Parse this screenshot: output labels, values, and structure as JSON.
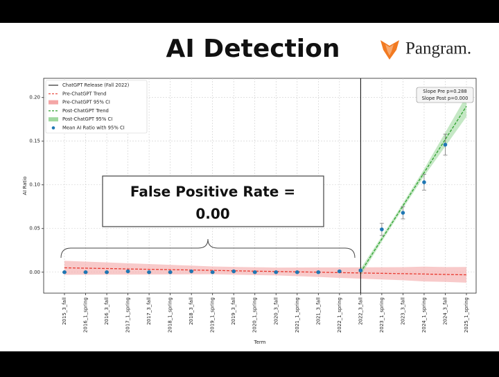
{
  "slide": {
    "title": "AI Detection",
    "logo": "Pangram."
  },
  "chart_data": {
    "type": "errorbar",
    "x_label": "Term",
    "y_label": "AI Ratio",
    "categories": [
      "2015_3_fall",
      "2016_1_spring",
      "2016_3_fall",
      "2017_1_spring",
      "2017_3_fall",
      "2018_1_spring",
      "2018_3_fall",
      "2019_1_spring",
      "2019_3_fall",
      "2020_1_spring",
      "2020_3_fall",
      "2021_1_spring",
      "2021_3_fall",
      "2022_1_spring",
      "2022_3_fall",
      "2023_1_spring",
      "2023_3_fall",
      "2024_1_spring",
      "2024_3_fall",
      "2025_1_spring"
    ],
    "ylim": [
      -0.024,
      0.222
    ],
    "yticks": [
      {
        "value": 0,
        "label": "0.00"
      },
      0.05,
      {
        "value": 0.1,
        "label": "0.10"
      },
      0.15,
      {
        "value": 0.2,
        "label": "0.20"
      }
    ],
    "grid": true,
    "release": {
      "name": "ChatGPT Release (Fall 2022)",
      "category": "2022_3_fall",
      "color": "#000000"
    },
    "trends": [
      {
        "name": "Pre-ChatGPT Trend",
        "color": "#e8392f",
        "ci_name": "Pre-ChatGPT 95% CI",
        "ci_color": "#f4a6a6",
        "values": [
          0.005,
          0.0046,
          0.0042,
          0.0037,
          0.0033,
          0.0029,
          0.0025,
          0.0021,
          0.0016,
          0.0012,
          0.0008,
          0.0004,
          0,
          -0.0005,
          -0.0009,
          -0.0013,
          -0.0017,
          -0.0021,
          -0.0026,
          -0.003
        ],
        "ci_upper": [
          0.013,
          0.0121,
          0.0112,
          0.0102,
          0.0093,
          0.0084,
          0.0075,
          0.0066,
          0.0061,
          0.0057,
          0.0053,
          0.0054,
          0.0055,
          0.0055,
          0.0056,
          0.0057,
          0.0058,
          0.0064,
          0.0059,
          0.006
        ],
        "ci_lower": [
          -0.003,
          -0.0029,
          -0.0028,
          -0.0028,
          -0.0027,
          -0.0026,
          -0.0025,
          -0.0024,
          -0.0029,
          -0.0033,
          -0.0037,
          -0.0046,
          -0.0055,
          -0.0065,
          -0.0074,
          -0.0083,
          -0.0092,
          -0.0106,
          -0.0111,
          -0.012
        ]
      },
      {
        "name": "Post-ChatGPT Trend",
        "color": "#2ca02c",
        "ci_name": "Post-ChatGPT 95% CI",
        "ci_color": "#9fd89f",
        "values": [
          null,
          null,
          null,
          null,
          null,
          null,
          null,
          null,
          null,
          null,
          null,
          null,
          null,
          null,
          0,
          0.038,
          0.076,
          0.114,
          0.152,
          0.19
        ],
        "ci_upper": [
          null,
          null,
          null,
          null,
          null,
          null,
          null,
          null,
          null,
          null,
          null,
          null,
          null,
          null,
          0.004,
          0.041,
          0.079,
          0.118,
          0.16,
          0.202
        ],
        "ci_lower": [
          null,
          null,
          null,
          null,
          null,
          null,
          null,
          null,
          null,
          null,
          null,
          null,
          null,
          null,
          -0.004,
          0.035,
          0.073,
          0.11,
          0.144,
          0.178
        ]
      }
    ],
    "series": [
      {
        "name": "Mean AI Ratio with 95% CI",
        "color": "#1f77b4",
        "values": [
          0,
          0,
          0,
          0.001,
          0,
          0,
          0.001,
          0,
          0.001,
          0,
          0,
          0,
          0,
          0.001,
          0.002,
          0.049,
          0.068,
          0.103,
          0.146,
          null
        ],
        "errors": [
          0.0005,
          0.0005,
          0.0005,
          0.0005,
          0.0005,
          0.0005,
          0.0005,
          0.0005,
          0.0005,
          0.0005,
          0.0005,
          0.0005,
          0.0005,
          0.0005,
          0.001,
          0.007,
          0.007,
          0.009,
          0.012,
          null
        ]
      }
    ],
    "slope_box": [
      "Slope Pre p=0.288",
      "Slope Post p=0.000"
    ],
    "annotation": [
      "False Positive Rate =",
      "0.00"
    ]
  }
}
